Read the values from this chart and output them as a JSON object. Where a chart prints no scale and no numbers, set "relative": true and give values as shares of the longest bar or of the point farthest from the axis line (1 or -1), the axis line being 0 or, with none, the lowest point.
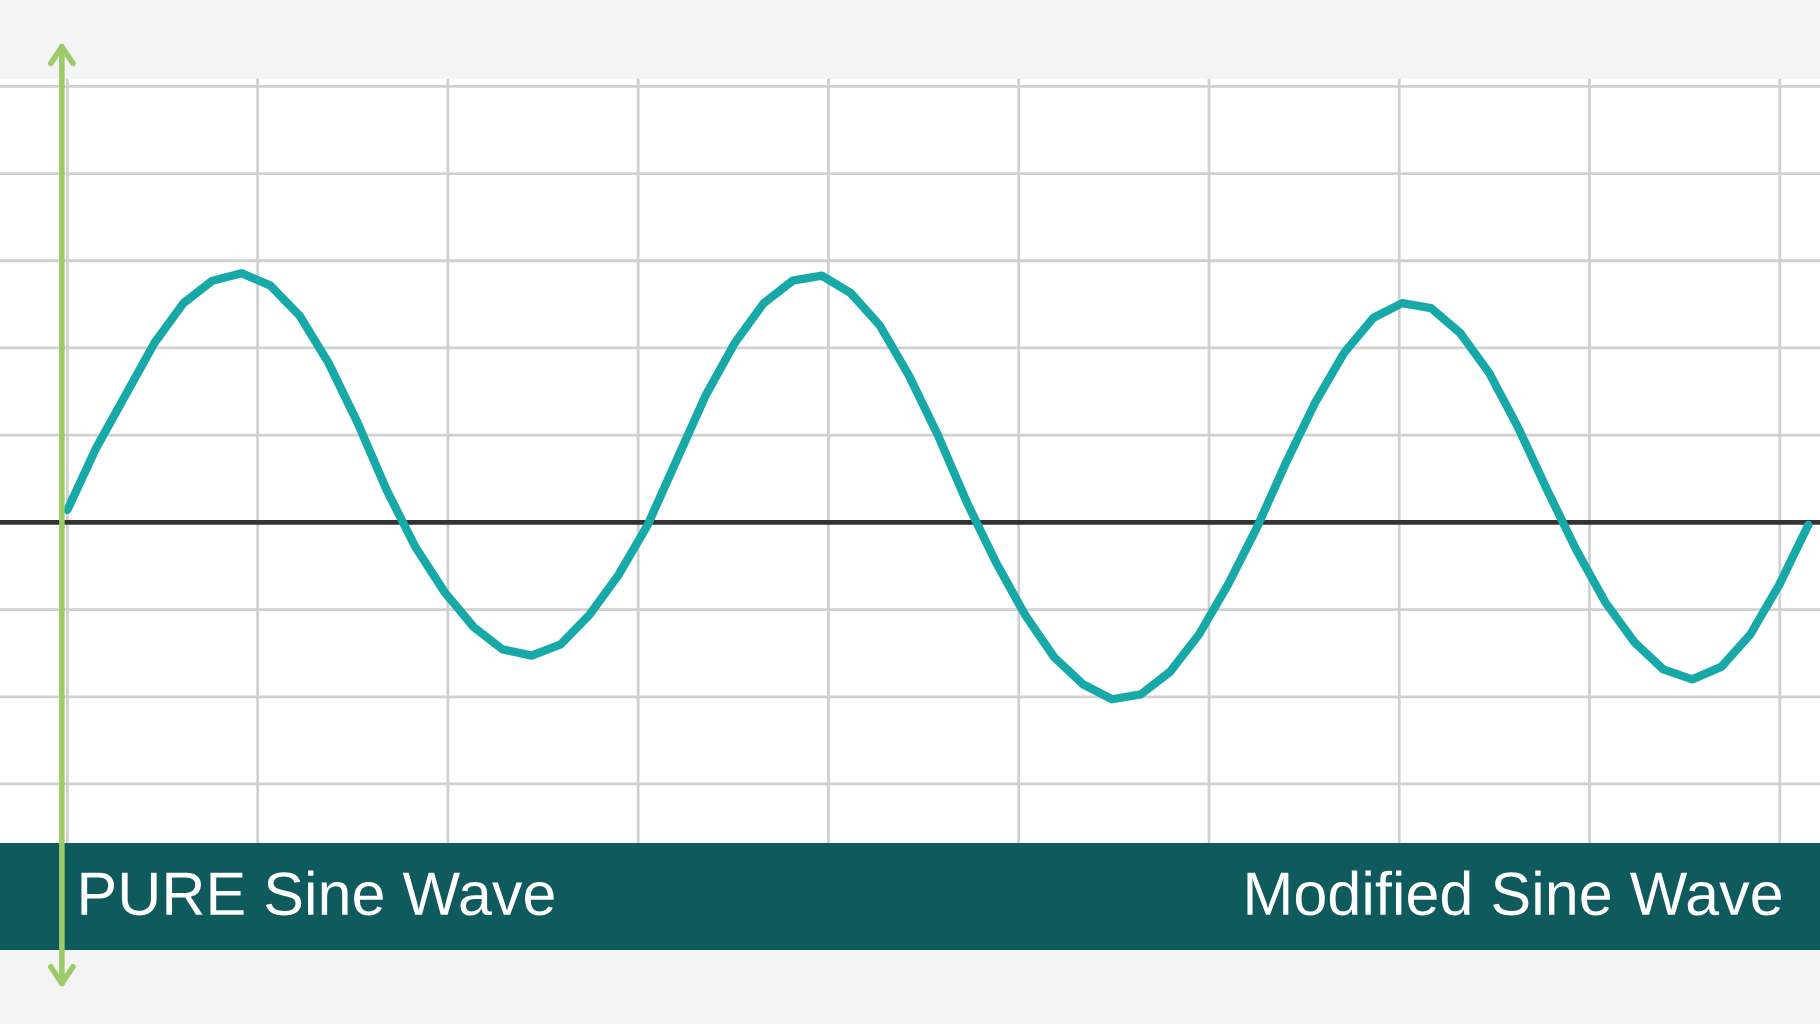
{
  "chart_data": {
    "type": "line",
    "relative": true,
    "grid": true,
    "categories": [
      null,
      null,
      null,
      null,
      null,
      null,
      null,
      null,
      null,
      null,
      null,
      null,
      null,
      null,
      null,
      null,
      null,
      null,
      null,
      null,
      null,
      null,
      null,
      null,
      null,
      null,
      null,
      null,
      null,
      null,
      null,
      null,
      null,
      null,
      null,
      null,
      null,
      null,
      null,
      null,
      null,
      null,
      null,
      null,
      null,
      null,
      null,
      null,
      null,
      null,
      null,
      null,
      null,
      null,
      null,
      null,
      null,
      null,
      null,
      null,
      null
    ],
    "series": [
      {
        "color": "#17a9a8",
        "values": [
          0.05,
          0.3,
          0.51,
          0.72,
          0.88,
          0.97,
          1.0,
          0.95,
          0.83,
          0.64,
          0.4,
          0.13,
          -0.1,
          -0.28,
          -0.42,
          -0.51,
          -0.535,
          -0.49,
          -0.37,
          -0.21,
          -0.01,
          0.25,
          0.51,
          0.72,
          0.88,
          0.97,
          0.99,
          0.92,
          0.79,
          0.59,
          0.35,
          0.08,
          -0.16,
          -0.37,
          -0.54,
          -0.65,
          -0.71,
          -0.69,
          -0.6,
          -0.45,
          -0.25,
          -0.02,
          0.24,
          0.48,
          0.68,
          0.82,
          0.88,
          0.86,
          0.76,
          0.6,
          0.38,
          0.13,
          -0.11,
          -0.32,
          -0.48,
          -0.59,
          -0.63,
          -0.58,
          -0.45,
          -0.25,
          -0.01
        ]
      }
    ],
    "annotations": [
      "PURE Sine Wave",
      "Modified Sine Wave"
    ]
  }
}
